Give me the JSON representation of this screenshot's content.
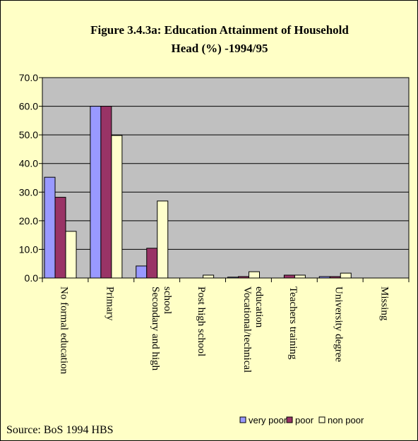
{
  "chart_data": {
    "type": "bar",
    "title_lines": [
      "Figure 3.4.3a: Education Attainment of Household",
      "Head (%) -1994/95"
    ],
    "source": "Source: BoS 1994 HBS",
    "categories": [
      [
        "No formal education"
      ],
      [
        "Primary"
      ],
      [
        "Secondary and high",
        "school"
      ],
      [
        "Post high school"
      ],
      [
        "Vocational/technical",
        "education"
      ],
      [
        "Teachers training"
      ],
      [
        "University degree"
      ],
      [
        "Missing"
      ]
    ],
    "series": [
      {
        "name": "very poor",
        "color": "#9999ff",
        "values": [
          35.2,
          60.0,
          4.2,
          0.0,
          0.3,
          0.0,
          0.5,
          0.0
        ]
      },
      {
        "name": "poor",
        "color": "#993366",
        "values": [
          28.2,
          60.0,
          10.4,
          0.0,
          0.5,
          1.0,
          0.5,
          0.0
        ]
      },
      {
        "name": "non poor",
        "color": "#ffffcc",
        "values": [
          16.3,
          49.8,
          26.9,
          1.0,
          2.2,
          1.0,
          1.7,
          0.0
        ]
      }
    ],
    "yticks": [
      "0.0",
      "10.0",
      "20.0",
      "30.0",
      "40.0",
      "50.0",
      "60.0",
      "70.0"
    ],
    "ylim": [
      0,
      70
    ],
    "grid": true,
    "plot_background": "#c0c0c0",
    "legend_position": "bottom-right"
  }
}
